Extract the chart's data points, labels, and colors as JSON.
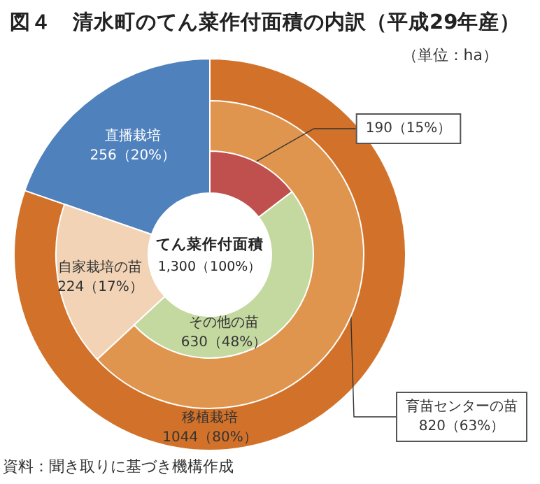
{
  "chart_data": [
    {
      "type": "donut",
      "title": "図４　清水町のてん菜作付面積の内訳（平成29年産）",
      "annotations": [
        "（単位：ha）",
        "資料：聞き取りに基づき機構作成",
        "てん菜作付面積",
        "1,300（100%）"
      ],
      "categories": [
        "移植栽培",
        "直播栽培"
      ],
      "values": [
        1044,
        256
      ],
      "colors": [
        "#d2722a",
        "#4f81bd"
      ],
      "value_labels": [
        "1044（80%）",
        "256（20%）"
      ]
    },
    {
      "type": "donut",
      "categories": [
        "育苗センターの苗",
        "自家栽培の苗"
      ],
      "values": [
        820,
        224
      ],
      "colors": [
        "#e0954f",
        "#f2d3b5"
      ],
      "value_labels": [
        "820（63%）",
        "224（17%）"
      ]
    },
    {
      "type": "donut",
      "categories": [
        null,
        "その他の苗"
      ],
      "values": [
        190,
        630
      ],
      "colors": [
        "#c0504d",
        "#c4d9a0"
      ],
      "value_labels": [
        "190（15%）",
        "630（48%）"
      ]
    }
  ]
}
